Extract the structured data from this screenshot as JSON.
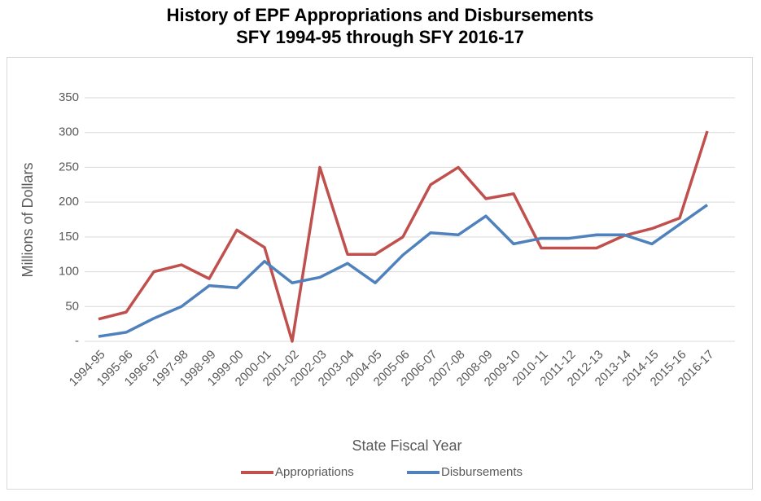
{
  "chart_data": {
    "type": "line",
    "title": "History of EPF Appropriations and Disbursements",
    "subtitle": "SFY 1994-95 through SFY 2016-17",
    "x_label": "State Fiscal Year",
    "y_label": "Millions of Dollars",
    "categories": [
      "1994-95",
      "1995-96",
      "1996-97",
      "1997-98",
      "1998-99",
      "1999-00",
      "2000-01",
      "2001-02",
      "2002-03",
      "2003-04",
      "2004-05",
      "2005-06",
      "2006-07",
      "2007-08",
      "2008-09",
      "2009-10",
      "2010-11",
      "2011-12",
      "2012-13",
      "2013-14",
      "2014-15",
      "2015-16",
      "2016-17"
    ],
    "series": [
      {
        "name": "Appropriations",
        "color": "#c0504d",
        "values": [
          32,
          42,
          100,
          110,
          90,
          160,
          135,
          0,
          250,
          125,
          125,
          150,
          225,
          250,
          205,
          212,
          134,
          134,
          134,
          152,
          162,
          177,
          302
        ]
      },
      {
        "name": "Disbursements",
        "color": "#4f81bd",
        "values": [
          7,
          13,
          33,
          50,
          80,
          77,
          115,
          84,
          92,
          112,
          84,
          124,
          156,
          153,
          180,
          140,
          148,
          148,
          153,
          153,
          140,
          168,
          196
        ]
      }
    ],
    "ylim": [
      0,
      350
    ],
    "yticks": [
      {
        "value": 0,
        "label": "-"
      },
      50,
      100,
      150,
      200,
      250,
      300,
      350
    ],
    "grid": true,
    "legend": "bottom"
  }
}
